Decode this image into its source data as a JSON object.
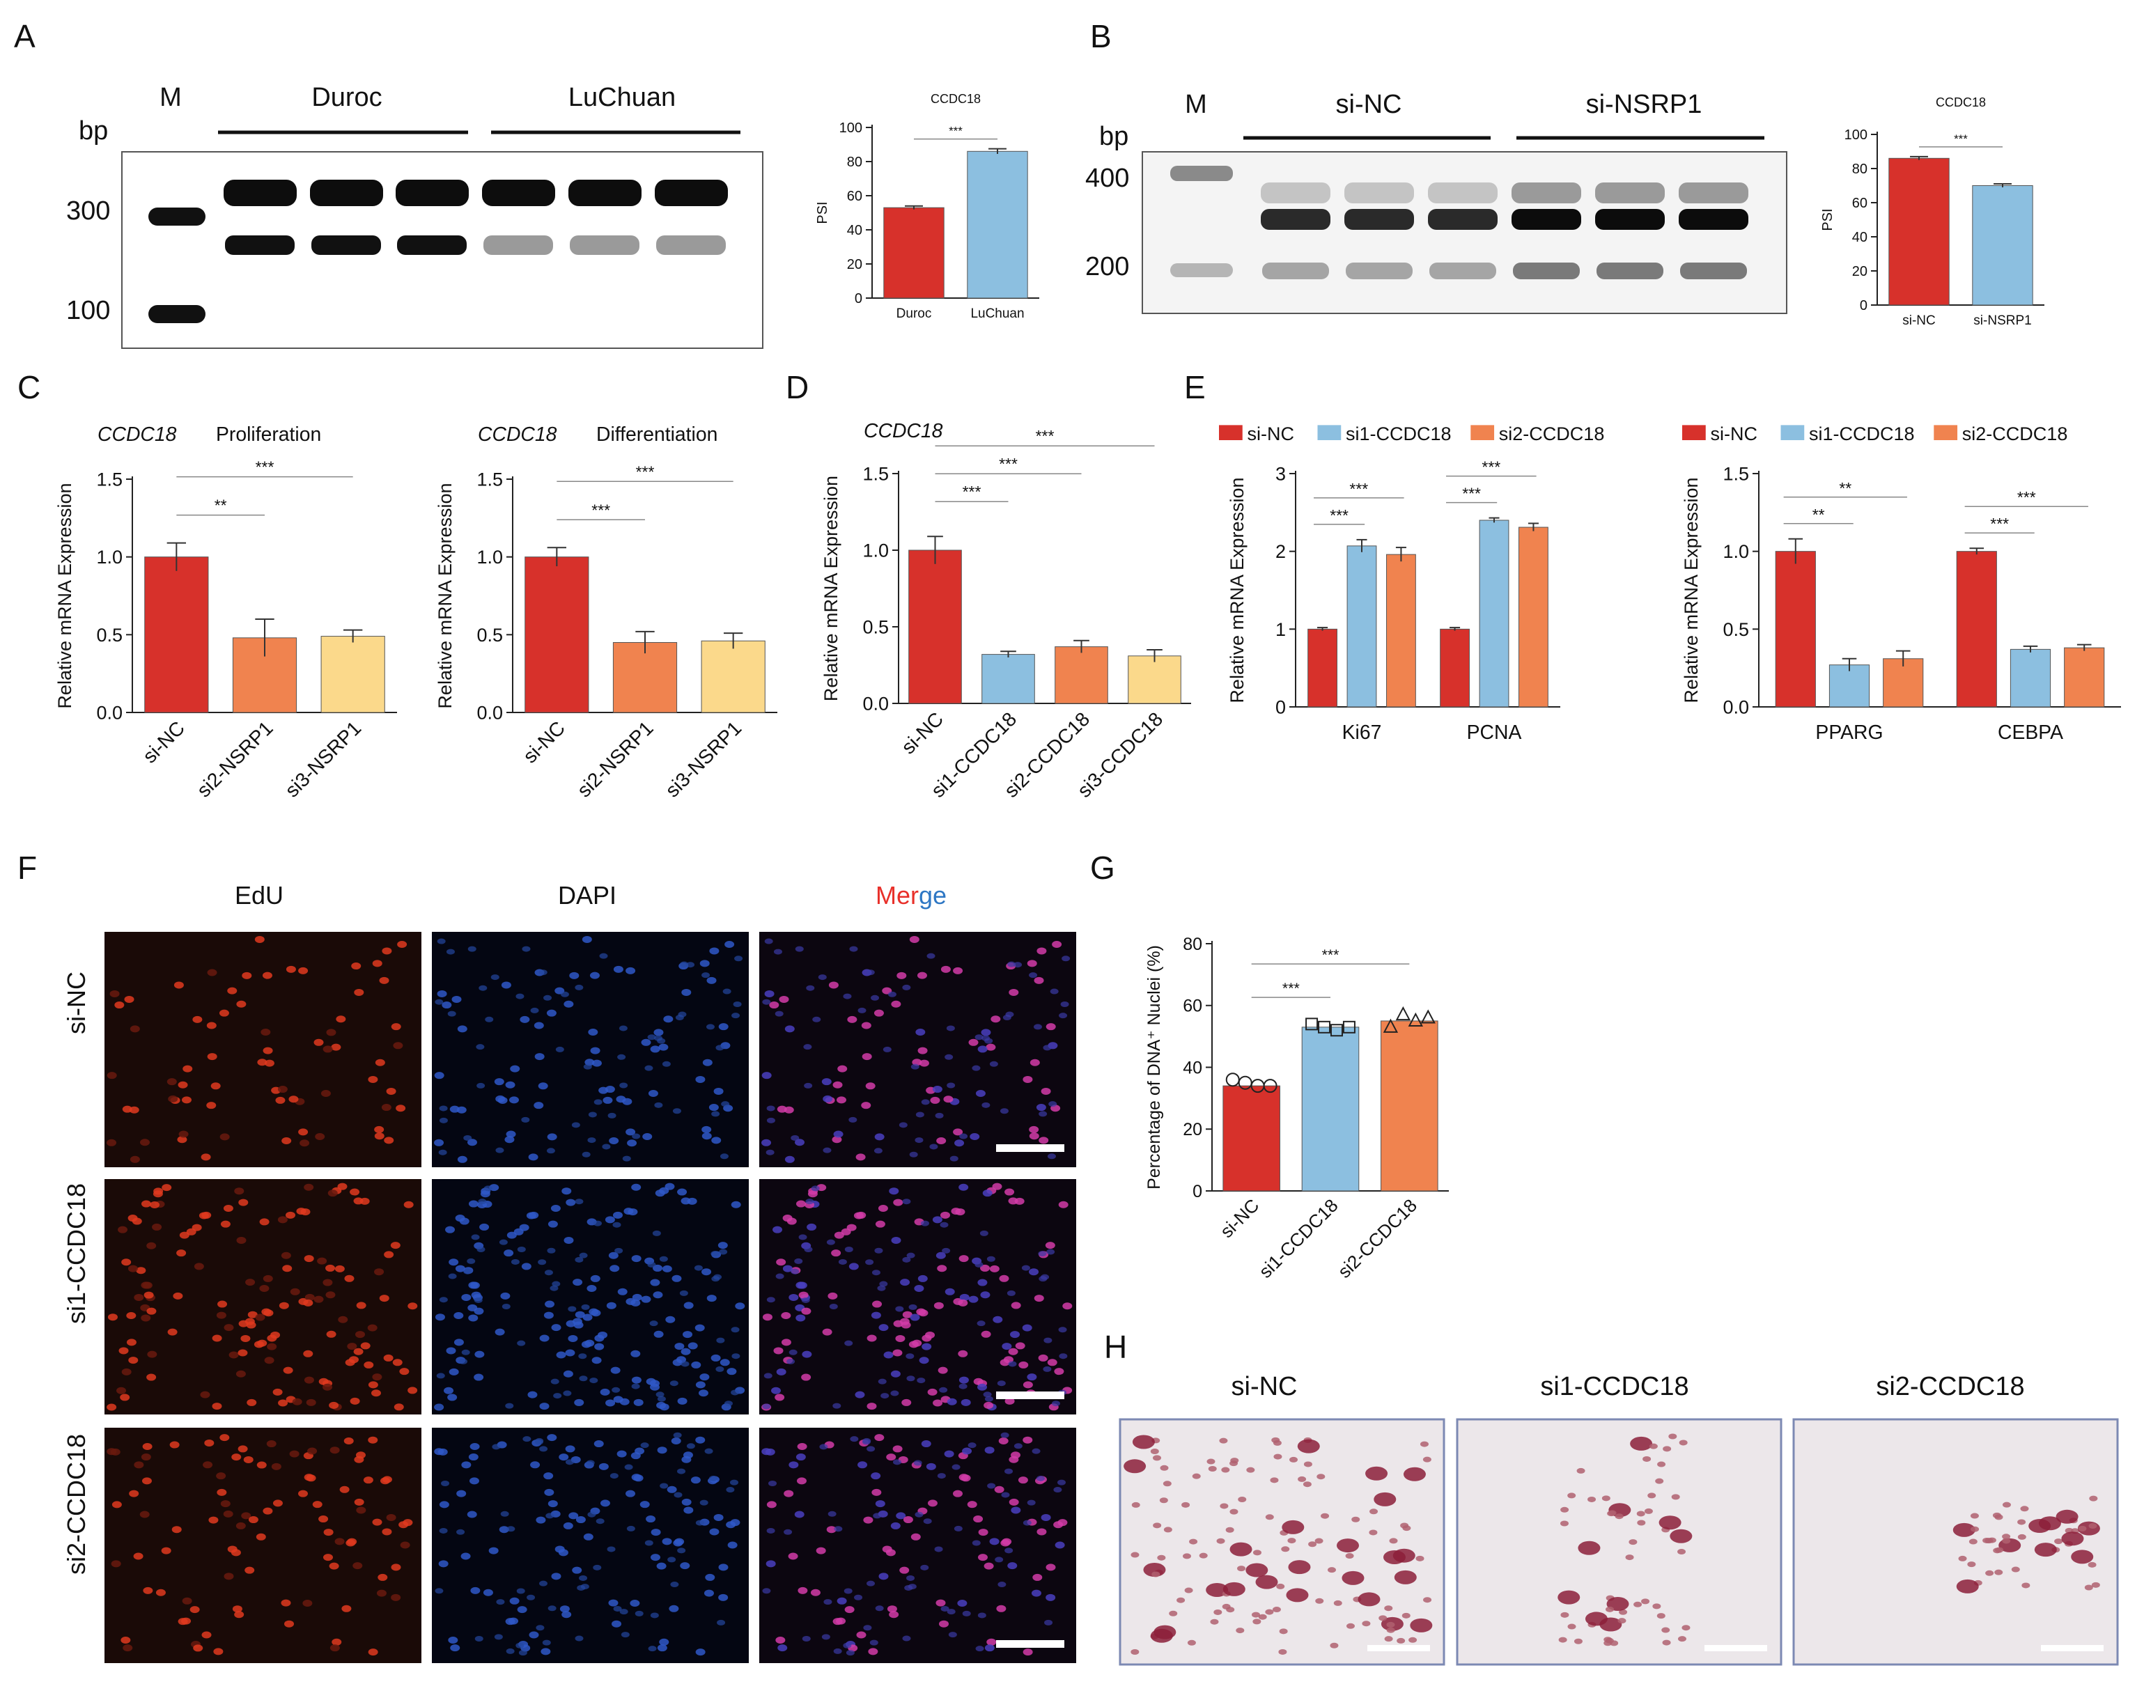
{
  "panel_letters": [
    "A",
    "B",
    "C",
    "D",
    "E",
    "F",
    "G",
    "H"
  ],
  "gelA": {
    "marker": "M",
    "bp": "bp",
    "group1": "Duroc",
    "group2": "LuChuan",
    "sizes": [
      "300",
      "100"
    ]
  },
  "gelB": {
    "marker": "M",
    "bp": "bp",
    "group1": "si-NC",
    "group2": "si-NSRP1",
    "sizes": [
      "400",
      "200"
    ]
  },
  "imagingF": {
    "columns": [
      "EdU",
      "DAPI",
      "Merge"
    ],
    "merge_parts": [
      "Mer",
      "ge"
    ],
    "rows": [
      "si-NC",
      "si1-CCDC18",
      "si2-CCDC18"
    ]
  },
  "imagingH": {
    "columns": [
      "si-NC",
      "si1-CCDC18",
      "si2-CCDC18"
    ]
  },
  "colors": {
    "red": "#d7312b",
    "blue": "#8cbfe0",
    "orange": "#f0834f",
    "yellow": "#fbd98b",
    "edu": "#e8302a",
    "dapi": "#2e77c4"
  },
  "chart_data": [
    {
      "id": "A",
      "type": "bar",
      "title": "CCDC18",
      "ylabel": "PSI",
      "categories": [
        "Duroc",
        "LuChuan"
      ],
      "values": [
        53,
        86
      ],
      "errors": [
        1,
        1.5
      ],
      "colors": [
        "#d7312b",
        "#8cbfe0"
      ],
      "ylim": [
        0,
        100
      ],
      "yticks": [
        "0",
        "20",
        "40",
        "60",
        "80",
        "100"
      ],
      "significance": [
        {
          "from": 0,
          "to": 1,
          "label": "***"
        }
      ]
    },
    {
      "id": "B",
      "type": "bar",
      "title": "CCDC18",
      "ylabel": "PSI",
      "categories": [
        "si-NC",
        "si-NSRP1"
      ],
      "values": [
        86,
        70
      ],
      "errors": [
        1,
        1
      ],
      "colors": [
        "#d7312b",
        "#8cbfe0"
      ],
      "ylim": [
        0,
        100
      ],
      "yticks": [
        "0",
        "20",
        "40",
        "60",
        "80",
        "100"
      ],
      "significance": [
        {
          "from": 0,
          "to": 1,
          "label": "***"
        }
      ]
    },
    {
      "id": "C1",
      "type": "bar",
      "title": "CCDC18",
      "subtitle": "Proliferation",
      "ylabel": "Relative mRNA Expression",
      "categories": [
        "si-NC",
        "si2-NSRP1",
        "si3-NSRP1"
      ],
      "values": [
        1.0,
        0.48,
        0.49
      ],
      "errors": [
        0.09,
        0.12,
        0.04
      ],
      "colors": [
        "#d7312b",
        "#f0834f",
        "#fbd98b"
      ],
      "ylim": [
        0,
        1.5
      ],
      "yticks": [
        "0.0",
        "0.5",
        "1.0",
        "1.5"
      ],
      "significance": [
        {
          "from": 0,
          "to": 1,
          "label": "**"
        },
        {
          "from": 0,
          "to": 2,
          "label": "***"
        }
      ]
    },
    {
      "id": "C2",
      "type": "bar",
      "title": "CCDC18",
      "subtitle": "Differentiation",
      "ylabel": "Relative mRNA Expression",
      "categories": [
        "si-NC",
        "si2-NSRP1",
        "si3-NSRP1"
      ],
      "values": [
        1.0,
        0.45,
        0.46
      ],
      "errors": [
        0.06,
        0.07,
        0.05
      ],
      "colors": [
        "#d7312b",
        "#f0834f",
        "#fbd98b"
      ],
      "ylim": [
        0,
        1.5
      ],
      "yticks": [
        "0.0",
        "0.5",
        "1.0",
        "1.5"
      ],
      "significance": [
        {
          "from": 0,
          "to": 1,
          "label": "***"
        },
        {
          "from": 0,
          "to": 2,
          "label": "***"
        }
      ]
    },
    {
      "id": "D",
      "type": "bar",
      "title": "CCDC18",
      "ylabel": "Relative mRNA Expression",
      "categories": [
        "si-NC",
        "si1-CCDC18",
        "si2-CCDC18",
        "si3-CCDC18"
      ],
      "values": [
        1.0,
        0.32,
        0.37,
        0.31
      ],
      "errors": [
        0.09,
        0.02,
        0.04,
        0.04
      ],
      "colors": [
        "#d7312b",
        "#8cbfe0",
        "#f0834f",
        "#fbd98b"
      ],
      "ylim": [
        0,
        1.5
      ],
      "yticks": [
        "0.0",
        "0.5",
        "1.0",
        "1.5"
      ],
      "significance": [
        {
          "from": 0,
          "to": 1,
          "label": "***"
        },
        {
          "from": 0,
          "to": 2,
          "label": "***"
        },
        {
          "from": 0,
          "to": 3,
          "label": "***"
        }
      ]
    },
    {
      "id": "E1",
      "type": "bar",
      "ylabel": "Relative mRNA Expression",
      "legend": [
        "si-NC",
        "si1-CCDC18",
        "si2-CCDC18"
      ],
      "categories": [
        "Ki67",
        "PCNA"
      ],
      "series": [
        {
          "name": "si-NC",
          "values": [
            1.0,
            1.0
          ],
          "errors": [
            0.02,
            0.02
          ],
          "color": "#d7312b"
        },
        {
          "name": "si1-CCDC18",
          "values": [
            2.07,
            2.4
          ],
          "errors": [
            0.08,
            0.03
          ],
          "color": "#8cbfe0"
        },
        {
          "name": "si2-CCDC18",
          "values": [
            1.96,
            2.31
          ],
          "errors": [
            0.09,
            0.05
          ],
          "color": "#f0834f"
        }
      ],
      "ylim": [
        0,
        3
      ],
      "yticks": [
        "0",
        "1",
        "2",
        "3"
      ],
      "significance": [
        {
          "group": 0,
          "from": 0,
          "to": 1,
          "label": "***"
        },
        {
          "group": 0,
          "from": 0,
          "to": 2,
          "label": "***"
        },
        {
          "group": 1,
          "from": 0,
          "to": 1,
          "label": "***"
        },
        {
          "group": 1,
          "from": 0,
          "to": 2,
          "label": "***"
        }
      ]
    },
    {
      "id": "E2",
      "type": "bar",
      "ylabel": "Relative mRNA Expression",
      "legend": [
        "si-NC",
        "si1-CCDC18",
        "si2-CCDC18"
      ],
      "categories": [
        "PPARG",
        "CEBPA"
      ],
      "series": [
        {
          "name": "si-NC",
          "values": [
            1.0,
            1.0
          ],
          "errors": [
            0.08,
            0.02
          ],
          "color": "#d7312b"
        },
        {
          "name": "si1-CCDC18",
          "values": [
            0.27,
            0.37
          ],
          "errors": [
            0.04,
            0.02
          ],
          "color": "#8cbfe0"
        },
        {
          "name": "si2-CCDC18",
          "values": [
            0.31,
            0.38
          ],
          "errors": [
            0.05,
            0.02
          ],
          "color": "#f0834f"
        }
      ],
      "ylim": [
        0,
        1.5
      ],
      "yticks": [
        "0.0",
        "0.5",
        "1.0",
        "1.5"
      ],
      "significance": [
        {
          "group": 0,
          "from": 0,
          "to": 1,
          "label": "**"
        },
        {
          "group": 0,
          "from": 0,
          "to": 2,
          "label": "**"
        },
        {
          "group": 1,
          "from": 0,
          "to": 1,
          "label": "***"
        },
        {
          "group": 1,
          "from": 0,
          "to": 2,
          "label": "***"
        }
      ]
    },
    {
      "id": "G",
      "type": "bar",
      "ylabel": "Percentage of DNA⁺ Nuclei (%)",
      "categories": [
        "si-NC",
        "si1-CCDC18",
        "si2-CCDC18"
      ],
      "values": [
        34,
        53,
        55
      ],
      "colors": [
        "#d7312b",
        "#8cbfe0",
        "#f0834f"
      ],
      "points": [
        [
          36,
          35,
          34,
          34
        ],
        [
          54,
          53,
          52,
          53
        ],
        [
          53,
          57,
          55,
          56
        ]
      ],
      "markers": [
        "circle",
        "square",
        "triangle"
      ],
      "ylim": [
        0,
        80
      ],
      "yticks": [
        "0",
        "20",
        "40",
        "60",
        "80"
      ],
      "significance": [
        {
          "from": 0,
          "to": 1,
          "label": "***"
        },
        {
          "from": 0,
          "to": 2,
          "label": "***"
        }
      ]
    }
  ]
}
